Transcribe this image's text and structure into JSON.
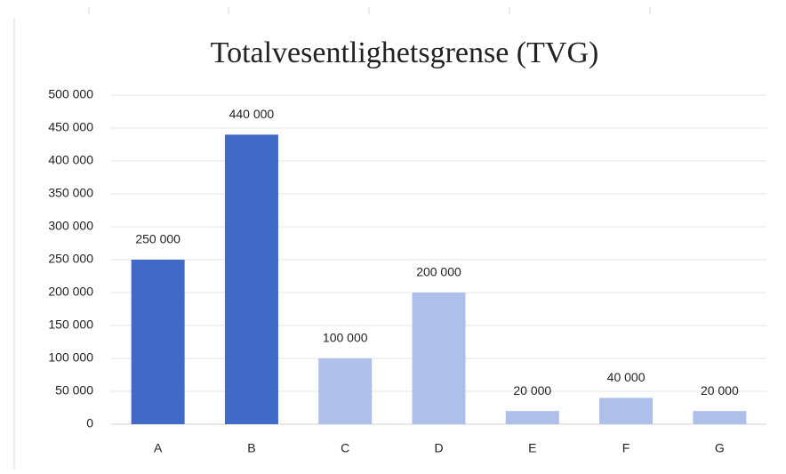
{
  "chart_data": {
    "type": "bar",
    "title": "Totalvesentlighetsgrense (TVG)",
    "categories": [
      "A",
      "B",
      "C",
      "D",
      "E",
      "F",
      "G"
    ],
    "values": [
      250000,
      440000,
      100000,
      200000,
      20000,
      40000,
      20000
    ],
    "value_labels": [
      "250 000",
      "440 000",
      "100 000",
      "200 000",
      "20 000",
      "40 000",
      "20 000"
    ],
    "colors": [
      "#4169c8",
      "#4169c8",
      "#aec0ea",
      "#aec0ea",
      "#aec0ea",
      "#aec0ea",
      "#aec0ea"
    ],
    "ylim": [
      0,
      500000
    ],
    "yticks": [
      0,
      {
        "value": 50000,
        "label": "50 000"
      },
      {
        "value": 100000,
        "label": "100 000"
      },
      {
        "value": 150000,
        "label": "150 000"
      },
      {
        "value": 200000,
        "label": "200 000"
      },
      {
        "value": 250000,
        "label": "250 000"
      },
      {
        "value": 300000,
        "label": "300 000"
      },
      {
        "value": 350000,
        "label": "350 000"
      },
      {
        "value": 400000,
        "label": "400 000"
      },
      {
        "value": 450000,
        "label": "450 000"
      },
      {
        "value": 500000,
        "label": "500 000"
      }
    ],
    "grid": true
  }
}
